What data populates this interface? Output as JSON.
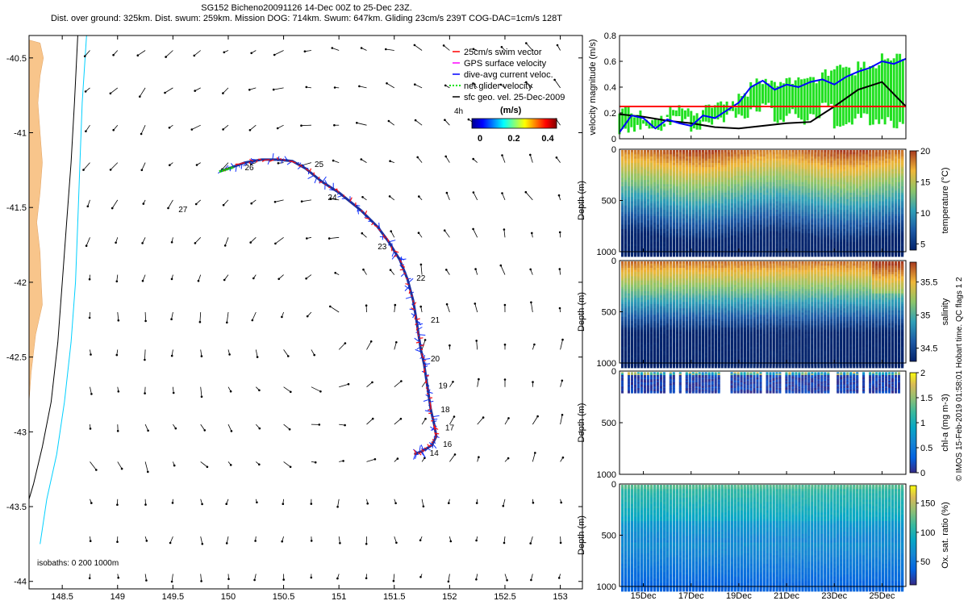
{
  "title_line1": "SG152 Bicheno20091126 14-Dec 00Z to 25-Dec 23Z.",
  "title_line2": "Dist. over ground: 325km. Dist. swum: 259km. Mission DOG: 714km. Swum: 647km. Gliding 23cm/s 239T COG-DAC=1cm/s 128T",
  "vertical_footer": "© IMOS 15-Feb-2019 01:58:01 Hobart time. QC flags 1 2",
  "chart_data": [
    {
      "type": "scatter",
      "panel": "map",
      "xlim": [
        148.2,
        153.2
      ],
      "ylim": [
        -44.05,
        -40.35
      ],
      "x_ticks": [
        "148.5",
        "149",
        "149.5",
        "150",
        "150.5",
        "151",
        "151.5",
        "152",
        "152.5",
        "153"
      ],
      "x_tick_values": [
        148.5,
        149,
        149.5,
        150,
        150.5,
        151,
        151.5,
        152,
        152.5,
        153
      ],
      "y_ticks": [
        "-40.5",
        "-41",
        "-41.5",
        "-42",
        "-42.5",
        "-43",
        "-43.5",
        "-44"
      ],
      "y_tick_values": [
        -40.5,
        -41,
        -41.5,
        -42,
        -42.5,
        -43,
        -43.5,
        -44
      ],
      "legend": {
        "placement": "top-right",
        "entries": [
          {
            "label": "25cm/s swim vector",
            "color": "#ff0000"
          },
          {
            "label": "GPS surface velocity",
            "color": "#ff00ff"
          },
          {
            "label": "dive-avg current veloc.",
            "color": "#0000ff"
          },
          {
            "label": "net glider velocity",
            "color": "#00e000"
          },
          {
            "label": "sfc geo. vel. 25-Dec-2009",
            "color": "#000000"
          }
        ]
      },
      "colorbar": {
        "label": "(m/s)",
        "ticks": [
          "0",
          "0.2",
          "0.4"
        ],
        "tick_values": [
          0,
          0.2,
          0.4
        ],
        "range": [
          0,
          0.5
        ]
      },
      "isobath_note": "isobaths: 0   200   1000m",
      "colorbar_corner_label": "4h",
      "track": {
        "lon": [
          151.68,
          151.75,
          151.84,
          151.88,
          151.86,
          151.83,
          151.81,
          151.79,
          151.77,
          151.74,
          151.72,
          151.7,
          151.67,
          151.62,
          151.55,
          151.45,
          151.35,
          151.2,
          151.0,
          150.85,
          150.7,
          150.58,
          150.45,
          150.3,
          150.15,
          150.0,
          149.92
        ],
        "lat": [
          -43.15,
          -43.13,
          -43.09,
          -43.03,
          -42.95,
          -42.85,
          -42.75,
          -42.65,
          -42.55,
          -42.45,
          -42.35,
          -42.25,
          -42.12,
          -41.98,
          -41.85,
          -41.73,
          -41.63,
          -41.52,
          -41.4,
          -41.33,
          -41.24,
          -41.19,
          -41.18,
          -41.18,
          -41.2,
          -41.24,
          -41.26
        ]
      },
      "day_labels": [
        {
          "label": "14",
          "lon": 151.82,
          "lat": -43.16
        },
        {
          "label": "16",
          "lon": 151.94,
          "lat": -43.1
        },
        {
          "label": "17",
          "lon": 151.96,
          "lat": -42.99
        },
        {
          "label": "18",
          "lon": 151.92,
          "lat": -42.87
        },
        {
          "label": "19",
          "lon": 151.9,
          "lat": -42.71
        },
        {
          "label": "20",
          "lon": 151.83,
          "lat": -42.53
        },
        {
          "label": "21",
          "lon": 151.83,
          "lat": -42.27
        },
        {
          "label": "22",
          "lon": 151.7,
          "lat": -41.99
        },
        {
          "label": "23",
          "lon": 151.35,
          "lat": -41.78
        },
        {
          "label": "24",
          "lon": 150.9,
          "lat": -41.45
        },
        {
          "label": "25",
          "lon": 150.78,
          "lat": -41.23
        },
        {
          "label": "26",
          "lon": 150.15,
          "lat": -41.25
        },
        {
          "label": "27",
          "lon": 149.55,
          "lat": -41.53
        }
      ]
    },
    {
      "type": "line",
      "panel": "velocity",
      "ylabel": "velocity magnitude (m/s)",
      "ylim": [
        0,
        0.8
      ],
      "y_ticks": [
        "0",
        "0.2",
        "0.4",
        "0.6",
        "0.8"
      ],
      "y_tick_values": [
        0,
        0.2,
        0.4,
        0.6,
        0.8
      ],
      "x_tick_days": [
        15,
        17,
        19,
        21,
        23,
        25
      ],
      "series": [
        {
          "color": "#000000",
          "x": [
            14,
            15,
            16,
            17,
            18,
            19,
            20,
            21,
            22,
            23,
            24,
            25,
            26
          ],
          "values": [
            0.19,
            0.17,
            0.14,
            0.12,
            0.09,
            0.08,
            0.1,
            0.12,
            0.13,
            0.25,
            0.38,
            0.44,
            0.25
          ]
        },
        {
          "color": "#0000ff",
          "x": [
            14,
            14.5,
            15,
            15.5,
            16,
            16.5,
            17,
            17.5,
            18,
            18.5,
            19,
            19.5,
            20,
            20.5,
            21,
            21.5,
            22,
            22.5,
            23,
            23.5,
            24,
            24.5,
            25,
            25.5,
            26
          ],
          "values": [
            0.05,
            0.18,
            0.16,
            0.08,
            0.15,
            0.12,
            0.1,
            0.18,
            0.16,
            0.22,
            0.28,
            0.4,
            0.45,
            0.38,
            0.42,
            0.4,
            0.44,
            0.46,
            0.42,
            0.48,
            0.52,
            0.55,
            0.6,
            0.58,
            0.62
          ]
        },
        {
          "color": "#ff0000",
          "x": [
            14,
            26
          ],
          "values": [
            0.25,
            0.25
          ]
        }
      ],
      "green_bounds": {
        "lower": [
          0.02,
          0.05,
          0.05,
          0.06,
          0.1,
          0.1,
          0.05,
          0.1,
          0.1,
          0.15,
          0.15,
          0.2,
          0.2,
          0.1,
          0.15,
          0.1,
          0.15,
          0.2,
          0.05,
          0.1,
          0.15,
          0.1,
          0.1,
          0.05
        ],
        "upper": [
          0.27,
          0.22,
          0.2,
          0.18,
          0.25,
          0.26,
          0.22,
          0.28,
          0.3,
          0.32,
          0.38,
          0.48,
          0.48,
          0.45,
          0.5,
          0.5,
          0.5,
          0.55,
          0.58,
          0.57,
          0.6,
          0.62,
          0.67,
          0.66
        ]
      }
    },
    {
      "type": "heatmap",
      "panel": "temperature",
      "ylabel": "Depth (m)",
      "colorbar_label": "temperature (°C)",
      "clim": [
        4,
        20
      ],
      "colorbar_ticks": [
        "5",
        "10",
        "15",
        "20"
      ],
      "colorbar_tick_values": [
        5,
        10,
        15,
        20
      ],
      "ylim": [
        1000,
        0
      ],
      "y_ticks": [
        "0",
        "500",
        "1000"
      ],
      "y_tick_values": [
        0,
        500,
        1000
      ],
      "surface_value": 19,
      "deep_value": 5
    },
    {
      "type": "heatmap",
      "panel": "salinity",
      "ylabel": "Depth (m)",
      "colorbar_label": "salinity",
      "clim": [
        34.3,
        35.8
      ],
      "colorbar_ticks": [
        "34.5",
        "35",
        "35.5"
      ],
      "colorbar_tick_values": [
        34.5,
        35,
        35.5
      ],
      "ylim": [
        1000,
        0
      ],
      "y_ticks": [
        "0",
        "500",
        "1000"
      ],
      "y_tick_values": [
        0,
        500,
        1000
      ],
      "surface_value": 35.6,
      "deep_value": 34.5
    },
    {
      "type": "heatmap",
      "panel": "chlorophyll",
      "ylabel": "Depth (m)",
      "colorbar_label": "chl-a (mg m-3)",
      "clim": [
        0,
        2
      ],
      "colorbar_ticks": [
        "0",
        "0.5",
        "1",
        "1.5",
        "2"
      ],
      "colorbar_tick_values": [
        0,
        0.5,
        1,
        1.5,
        2
      ],
      "ylim": [
        1000,
        0
      ],
      "y_ticks": [
        "0",
        "500",
        "1000"
      ],
      "y_tick_values": [
        0,
        500,
        1000
      ],
      "max_depth_sampled": 200
    },
    {
      "type": "heatmap",
      "panel": "oxygen",
      "ylabel": "Depth (m)",
      "colorbar_label": "Ox. sat. ratio (%)",
      "clim": [
        10,
        180
      ],
      "colorbar_ticks": [
        "50",
        "100",
        "150"
      ],
      "colorbar_tick_values": [
        50,
        100,
        150
      ],
      "ylim": [
        1000,
        0
      ],
      "y_ticks": [
        "0",
        "500",
        "1000"
      ],
      "y_tick_values": [
        0,
        500,
        1000
      ],
      "x_ticks": [
        "15Dec",
        "17Dec",
        "19Dec",
        "21Dec",
        "23Dec",
        "25Dec"
      ],
      "x_tick_days": [
        15,
        17,
        19,
        21,
        23,
        25
      ],
      "surface_value": 110,
      "deep_value": 40
    }
  ]
}
